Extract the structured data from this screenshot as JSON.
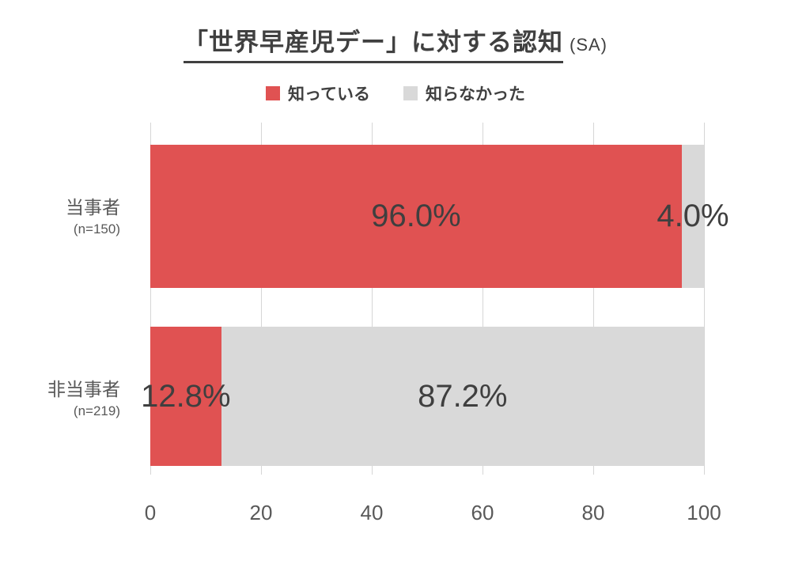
{
  "title": {
    "main": "「世界早産児デー」に対する認知",
    "suffix": "(SA)"
  },
  "chart_data": {
    "type": "bar",
    "orientation": "horizontal",
    "stacked": true,
    "title": "「世界早産児デー」に対する認知 (SA)",
    "categories": [
      "当事者",
      "非当事者"
    ],
    "category_notes": [
      "(n=150)",
      "(n=219)"
    ],
    "series": [
      {
        "name": "知っている",
        "color": "#e05252",
        "values": [
          96.0,
          12.8
        ]
      },
      {
        "name": "知らなかった",
        "color": "#d9d9d9",
        "values": [
          4.0,
          87.2
        ]
      }
    ],
    "data_labels": [
      [
        "96.0%",
        "4.0%"
      ],
      [
        "12.8%",
        "87.2%"
      ]
    ],
    "x_ticks": [
      0,
      20,
      40,
      60,
      80,
      100
    ],
    "xlim": [
      0,
      100
    ],
    "grid": true,
    "legend_position": "top",
    "colors": {
      "aware": "#e05252",
      "unaware": "#d9d9d9",
      "title_text": "#404040",
      "label_text": "#595959",
      "gridline": "#d6d6d6"
    }
  }
}
